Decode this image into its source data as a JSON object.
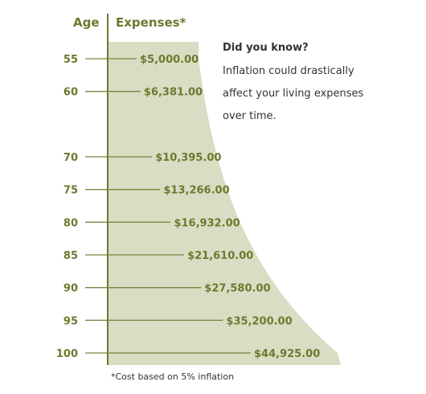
{
  "chart_data": {
    "type": "area",
    "xlabel": "Age",
    "ylabel": "Expenses*",
    "categories": [
      "55",
      "60",
      "70",
      "75",
      "80",
      "85",
      "90",
      "95",
      "100"
    ],
    "values": [
      5000,
      6381,
      10395,
      13266,
      16932,
      21610,
      27580,
      35200,
      44925
    ],
    "value_labels": [
      "$5,000.00",
      "$6,381.00",
      "$10,395.00",
      "$13,266.00",
      "$16,932.00",
      "$21,610.00",
      "$27,580.00",
      "$35,200.00",
      "$44,925.00"
    ],
    "footnote": "*Cost based on 5% inflation",
    "colors": {
      "fill": "#dadcc3",
      "text": "#6b7a2e",
      "axis": "#6b7a2e",
      "leader": "#7a8640"
    }
  },
  "callout": {
    "title": "Did you know?",
    "lines": [
      "Inflation could drastically",
      "affect your living expenses",
      "over time."
    ]
  }
}
